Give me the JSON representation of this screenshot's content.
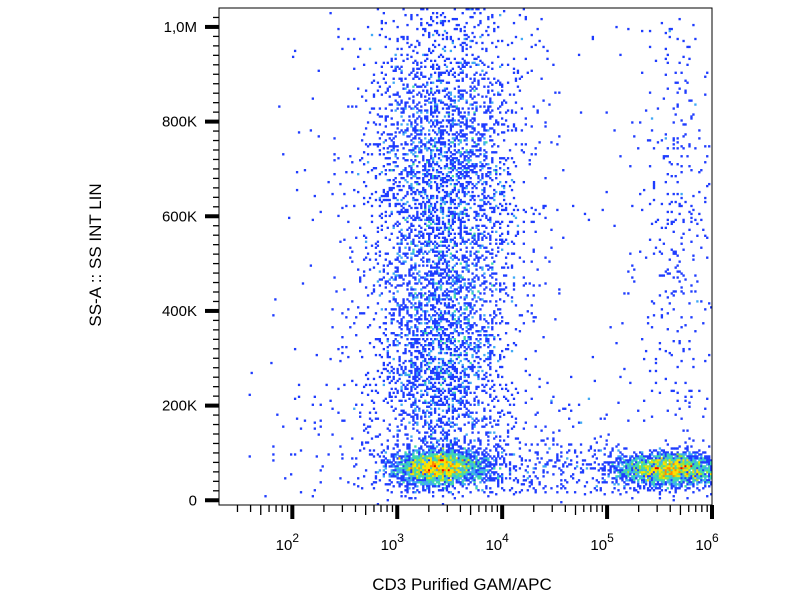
{
  "chart_data": {
    "type": "scatter",
    "subtype": "flow-cytometry-density-plot",
    "xlabel": "CD3 Purified GAM/APC",
    "ylabel": "SS-A :: SS INT LIN",
    "x_scale": "log",
    "y_scale": "linear",
    "xlim": [
      20,
      1000000
    ],
    "ylim": [
      -10000,
      1040000
    ],
    "x_ticks": [
      {
        "value": 100,
        "base": "10",
        "exp": "2"
      },
      {
        "value": 1000,
        "base": "10",
        "exp": "3"
      },
      {
        "value": 10000,
        "base": "10",
        "exp": "4"
      },
      {
        "value": 100000,
        "base": "10",
        "exp": "5"
      },
      {
        "value": 1000000,
        "base": "10",
        "exp": "6"
      }
    ],
    "y_ticks": [
      {
        "value": 0,
        "label": "0"
      },
      {
        "value": 200000,
        "label": "200K"
      },
      {
        "value": 400000,
        "label": "400K"
      },
      {
        "value": 600000,
        "label": "600K"
      },
      {
        "value": 800000,
        "label": "800K"
      },
      {
        "value": 1000000,
        "label": "1,0M"
      }
    ],
    "grid": false,
    "legend": "none",
    "colormap": [
      "#00008b",
      "#1e3cff",
      "#3fa9f5",
      "#3fd8b0",
      "#a6e22e",
      "#ffe000",
      "#ff8a00",
      "#e60000"
    ],
    "populations": [
      {
        "x_center": 2500,
        "y_center": 70000,
        "density": "very high",
        "events_shown": 2600
      },
      {
        "x_center": 2800,
        "y_center": 650000,
        "density": "medium",
        "events_shown": 3800
      },
      {
        "x_center": 2600,
        "y_center": 280000,
        "density": "medium",
        "events_shown": 1300
      },
      {
        "x_center": 400000,
        "y_center": 65000,
        "density": "very high",
        "events_shown": 2400
      },
      {
        "x_center": 450000,
        "y_center": 600000,
        "density": "low",
        "events_shown": 350
      }
    ]
  }
}
